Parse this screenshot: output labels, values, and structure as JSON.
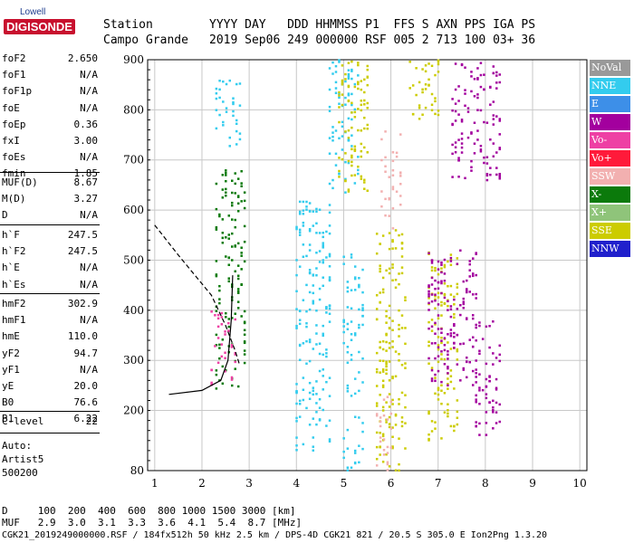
{
  "logo": {
    "top": "Lowell",
    "main": "DIGISONDE"
  },
  "header": {
    "station_label": "Station",
    "station_name": "Campo Grande",
    "cols_line1": "YYYY DAY   DDD HHMMSS P1  FFS S AXN PPS IGA PS",
    "cols_line2": "2019 Sep06 249 000000 RSF 005 2 713 100 03+ 36"
  },
  "params_top": [
    {
      "label": "foF2",
      "value": "2.650"
    },
    {
      "label": "foF1",
      "value": "N/A"
    },
    {
      "label": "foF1p",
      "value": "N/A"
    },
    {
      "label": "foE",
      "value": "N/A"
    },
    {
      "label": "foEp",
      "value": "0.36"
    },
    {
      "label": "fxI",
      "value": "3.00"
    },
    {
      "label": "foEs",
      "value": "N/A"
    },
    {
      "label": "fmin",
      "value": "1.85"
    }
  ],
  "params_mid": [
    {
      "label": "MUF(D)",
      "value": "8.67"
    },
    {
      "label": "M(D)",
      "value": "3.27"
    },
    {
      "label": "D",
      "value": "N/A"
    }
  ],
  "params_h": [
    {
      "label": "h`F",
      "value": "247.5"
    },
    {
      "label": "h`F2",
      "value": "247.5"
    },
    {
      "label": "h`E",
      "value": "N/A"
    },
    {
      "label": "h`Es",
      "value": "N/A"
    }
  ],
  "params_low": [
    {
      "label": "hmF2",
      "value": "302.9"
    },
    {
      "label": "hmF1",
      "value": "N/A"
    },
    {
      "label": "hmE",
      "value": "110.0"
    },
    {
      "label": "yF2",
      "value": "94.7"
    },
    {
      "label": "yF1",
      "value": "N/A"
    },
    {
      "label": "yE",
      "value": "20.0"
    },
    {
      "label": "B0",
      "value": "76.6"
    },
    {
      "label": "B1",
      "value": "6.22"
    }
  ],
  "params_clevel": [
    {
      "label": "C-level",
      "value": "22"
    }
  ],
  "auto": [
    "Auto:",
    "Artist5",
    "500200"
  ],
  "legend": [
    {
      "label": "NoVal",
      "color": "#999999"
    },
    {
      "label": "NNE",
      "color": "#33ccee"
    },
    {
      "label": "E",
      "color": "#3d8fe8"
    },
    {
      "label": "W",
      "color": "#a3009e"
    },
    {
      "label": "Vo-",
      "color": "#ee40a4"
    },
    {
      "label": "Vo+",
      "color": "#ff1a3a"
    },
    {
      "label": "SSW",
      "color": "#f2b0b0"
    },
    {
      "label": "X-",
      "color": "#0b7a0b"
    },
    {
      "label": "X+",
      "color": "#8fc47a"
    },
    {
      "label": "SSE",
      "color": "#cccc00"
    },
    {
      "label": "NNW",
      "color": "#2020cc"
    }
  ],
  "footer": {
    "d_line": "D     100  200  400  600  800 1000 1500 3000 [km]",
    "muf_line": "MUF   2.9  3.0  3.1  3.3  3.6  4.1  5.4  8.7 [MHz]",
    "file_line": "CGK21_2019249000000.RSF / 184fx512h 50 kHz 2.5 km / DPS-4D CGK21 821 / 20.5 S 305.0 E Ion2Png 1.3.20"
  },
  "chart_data": {
    "type": "scatter",
    "xlim": [
      0.85,
      10.15
    ],
    "ylim": [
      80,
      900
    ],
    "x_ticks": [
      1,
      2,
      3,
      4,
      5,
      6,
      7,
      8,
      9,
      10
    ],
    "y_ticks": [
      80,
      200,
      300,
      400,
      500,
      600,
      700,
      800,
      900
    ],
    "grid": true,
    "trace_clusters": [
      {
        "name": "NNE",
        "x_range": [
          2.3,
          2.8
        ],
        "h_range": [
          720,
          870
        ]
      },
      {
        "name": "NNE",
        "x_range": [
          4.0,
          4.7
        ],
        "h_range": [
          120,
          620
        ]
      },
      {
        "name": "NNE",
        "x_range": [
          4.7,
          5.3
        ],
        "h_range": [
          630,
          900
        ]
      },
      {
        "name": "NNE",
        "x_range": [
          5.0,
          5.4
        ],
        "h_range": [
          80,
          520
        ]
      },
      {
        "name": "SSE",
        "x_range": [
          5.7,
          6.3
        ],
        "h_range": [
          80,
          560
        ]
      },
      {
        "name": "SSE",
        "x_range": [
          4.9,
          5.5
        ],
        "h_range": [
          620,
          900
        ]
      },
      {
        "name": "SSE",
        "x_range": [
          6.8,
          7.4
        ],
        "h_range": [
          140,
          520
        ]
      },
      {
        "name": "SSE",
        "x_range": [
          6.4,
          7.0
        ],
        "h_range": [
          780,
          900
        ]
      },
      {
        "name": "SSW",
        "x_range": [
          5.8,
          6.2
        ],
        "h_range": [
          560,
          760
        ]
      },
      {
        "name": "SSW",
        "x_range": [
          5.7,
          6.0
        ],
        "h_range": [
          80,
          240
        ]
      },
      {
        "name": "W",
        "x_range": [
          6.8,
          7.8
        ],
        "h_range": [
          250,
          520
        ]
      },
      {
        "name": "W",
        "x_range": [
          7.8,
          8.3
        ],
        "h_range": [
          150,
          380
        ]
      },
      {
        "name": "W",
        "x_range": [
          7.3,
          8.3
        ],
        "h_range": [
          660,
          900
        ]
      },
      {
        "name": "X-",
        "x_range": [
          2.3,
          2.9
        ],
        "h_range": [
          240,
          680
        ]
      },
      {
        "name": "Vo-",
        "x_range": [
          2.2,
          2.7
        ],
        "h_range": [
          240,
          400
        ]
      }
    ],
    "profile_fit": [
      [
        1.3,
        232
      ],
      [
        2.0,
        240
      ],
      [
        2.4,
        260
      ],
      [
        2.55,
        300
      ],
      [
        2.62,
        380
      ],
      [
        2.65,
        470
      ]
    ],
    "profile_real": [
      [
        1.0,
        570
      ],
      [
        1.5,
        510
      ],
      [
        2.2,
        430
      ],
      [
        2.5,
        370
      ],
      [
        2.7,
        320
      ],
      [
        2.8,
        290
      ]
    ]
  }
}
